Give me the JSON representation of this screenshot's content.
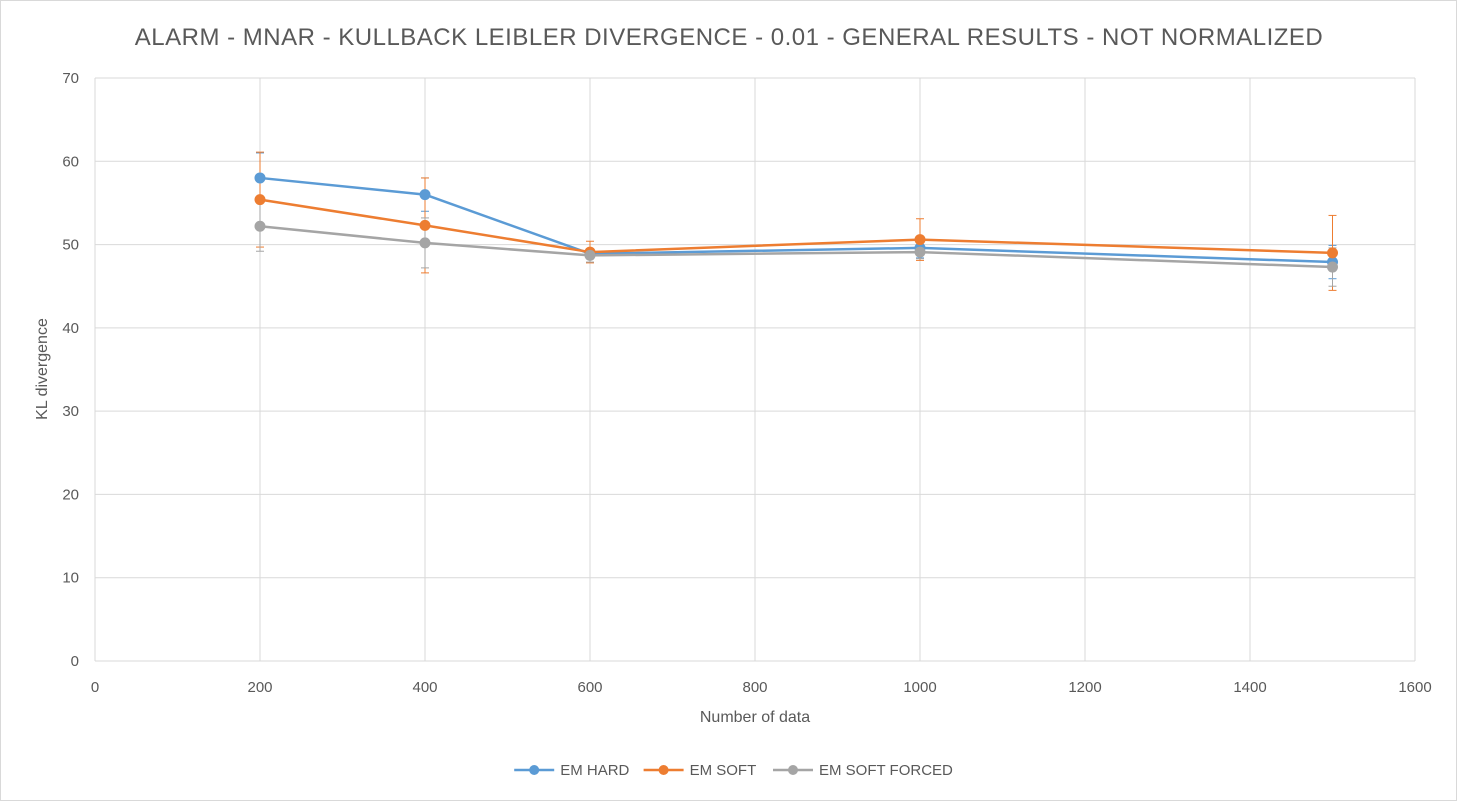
{
  "chart_data": {
    "type": "line",
    "title": "ALARM - MNAR - KULLBACK LEIBLER DIVERGENCE - 0.01 - GENERAL RESULTS - NOT NORMALIZED",
    "xlabel": "Number of data",
    "ylabel": "KL divergence",
    "xlim": [
      0,
      1600
    ],
    "ylim": [
      0,
      70
    ],
    "x_ticks": [
      0,
      200,
      400,
      600,
      800,
      1000,
      1200,
      1400,
      1600
    ],
    "y_ticks": [
      0,
      10,
      20,
      30,
      40,
      50,
      60,
      70
    ],
    "grid": true,
    "legend_position": "bottom",
    "x": [
      200,
      400,
      600,
      1000,
      1500
    ],
    "series": [
      {
        "name": "EM HARD",
        "color": "#5b9bd5",
        "values": [
          58.0,
          56.0,
          48.9,
          49.6,
          47.9
        ],
        "error": [
          3.0,
          2.0,
          0.6,
          1.2,
          2.0
        ]
      },
      {
        "name": "EM SOFT",
        "color": "#ed7d31",
        "values": [
          55.4,
          52.3,
          49.1,
          50.6,
          49.0
        ],
        "error": [
          5.7,
          5.7,
          1.3,
          2.5,
          4.5
        ]
      },
      {
        "name": "EM SOFT FORCED",
        "color": "#a5a5a5",
        "values": [
          52.2,
          50.2,
          48.7,
          49.1,
          47.3
        ],
        "error": [
          3.0,
          3.0,
          0.8,
          0.8,
          2.3
        ]
      }
    ]
  }
}
